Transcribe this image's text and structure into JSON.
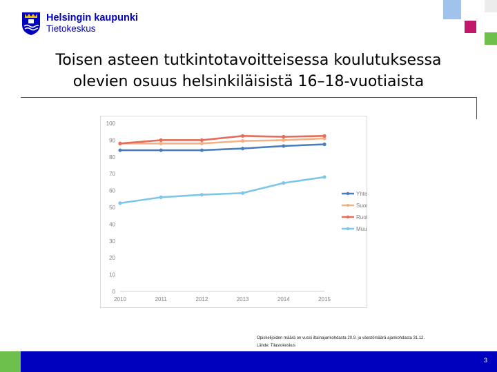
{
  "header": {
    "logo_line1": "Helsingin kaupunki",
    "logo_line2": "Tietokeskus"
  },
  "slide": {
    "title_line1": "Toisen asteen tutkintotavoitteisessa koulutuksessa",
    "title_line2": "olevien osuus helsinkiläisistä 16–18-vuotiaista",
    "footnote_line1": "Opiskelijoiden määrä on vuosi iltainajankohdasta 20.9. ja väestömäärä ajankohdasta 31.12.",
    "footnote_line2": "Lähde: Tilastokeskus",
    "page_number": "3"
  },
  "colors": {
    "brand_blue": "#0000bf",
    "brand_green": "#6dc04b",
    "brand_magenta": "#c2186b",
    "brand_light_blue": "#9fc3eb"
  },
  "chart_data": {
    "type": "line",
    "title": "",
    "xlabel": "",
    "ylabel": "",
    "x": [
      "2010",
      "2011",
      "2012",
      "2013",
      "2014",
      "2015"
    ],
    "ylim": [
      0,
      100
    ],
    "yticks": [
      "0",
      "10",
      "20",
      "30",
      "40",
      "50",
      "60",
      "70",
      "80",
      "90",
      "100"
    ],
    "grid": false,
    "legend_position": "right",
    "series": [
      {
        "name": "Yhteensä",
        "color": "#4a7ebb",
        "values": [
          84,
          84,
          84,
          85,
          86.5,
          87.5
        ]
      },
      {
        "name": "Suomi",
        "color": "#f4b183",
        "values": [
          88,
          88,
          88,
          89.5,
          90,
          91
        ]
      },
      {
        "name": "Ruotsi",
        "color": "#e46c5a",
        "values": [
          88,
          90,
          90,
          92.5,
          92,
          92.5
        ]
      },
      {
        "name": "Muu",
        "color": "#7cc7e8",
        "values": [
          52.5,
          56,
          57.5,
          58.5,
          64.5,
          68
        ]
      }
    ]
  }
}
